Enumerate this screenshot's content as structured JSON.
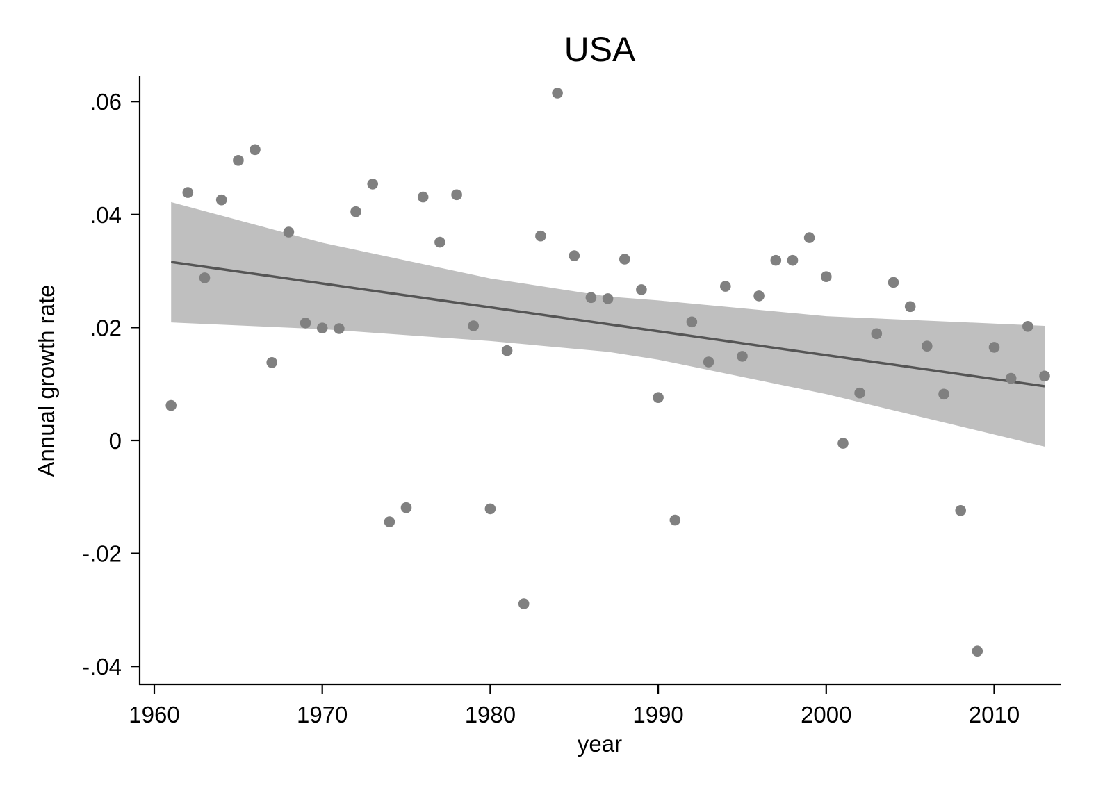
{
  "colors": {
    "background": "#ffffff",
    "points": "#808080",
    "fit_line": "#555555",
    "ci_band": "#bfbfbf",
    "axes": "#000000"
  },
  "chart_data": {
    "type": "scatter",
    "title": "USA",
    "xlabel": "year",
    "ylabel": "Annual growth rate",
    "xlim": [
      1959.2,
      2014.0
    ],
    "ylim": [
      -0.0435,
      0.0645
    ],
    "grid": false,
    "legend": null,
    "x_ticks": [
      1960,
      1970,
      1980,
      1990,
      2000,
      2010
    ],
    "x_tick_labels": [
      "1960",
      "1970",
      "1980",
      "1990",
      "2000",
      "2010"
    ],
    "y_ticks": [
      -0.04,
      -0.02,
      0,
      0.02,
      0.04,
      0.06
    ],
    "y_tick_labels": [
      "-.04",
      "-.02",
      "0",
      ".02",
      ".04",
      ".06"
    ],
    "series": [
      {
        "name": "Annual growth rate",
        "type": "scatter",
        "x": [
          1961,
          1962,
          1963,
          1964,
          1965,
          1966,
          1967,
          1968,
          1969,
          1970,
          1971,
          1972,
          1973,
          1974,
          1975,
          1976,
          1977,
          1978,
          1979,
          1980,
          1981,
          1982,
          1983,
          1984,
          1985,
          1986,
          1987,
          1988,
          1989,
          1990,
          1991,
          1992,
          1993,
          1994,
          1995,
          1996,
          1997,
          1998,
          1999,
          2000,
          2001,
          2002,
          2003,
          2004,
          2005,
          2006,
          2007,
          2008,
          2009,
          2010,
          2011,
          2012,
          2013
        ],
        "y": [
          0.0062,
          0.0439,
          0.0288,
          0.0426,
          0.0496,
          0.0515,
          0.0138,
          0.0369,
          0.0208,
          0.0199,
          0.0198,
          0.0405,
          0.0454,
          -0.0144,
          -0.0119,
          0.0431,
          0.0351,
          0.0435,
          0.0203,
          -0.0121,
          0.0159,
          -0.0289,
          0.0362,
          0.0615,
          0.0327,
          0.0253,
          0.0251,
          0.0321,
          0.0267,
          0.0076,
          -0.0141,
          0.021,
          0.0139,
          0.0273,
          0.0149,
          0.0256,
          0.0319,
          0.0319,
          0.0359,
          0.029,
          -0.0005,
          0.0084,
          0.0189,
          0.028,
          0.0237,
          0.0167,
          0.0082,
          -0.0124,
          -0.0373,
          0.0165,
          0.011,
          0.0202,
          0.0114
        ]
      },
      {
        "name": "Linear fit",
        "type": "line",
        "x": [
          1961,
          2013
        ],
        "y": [
          0.0316,
          0.0096
        ]
      },
      {
        "name": "95% CI",
        "type": "area",
        "x": [
          1961,
          1970,
          1980,
          1987,
          1990,
          2000,
          2013
        ],
        "upper": [
          0.0422,
          0.035,
          0.0287,
          0.0255,
          0.0248,
          0.022,
          0.0203
        ],
        "lower": [
          0.0209,
          0.0197,
          0.0176,
          0.0157,
          0.0143,
          0.0082,
          -0.0011
        ]
      }
    ]
  }
}
